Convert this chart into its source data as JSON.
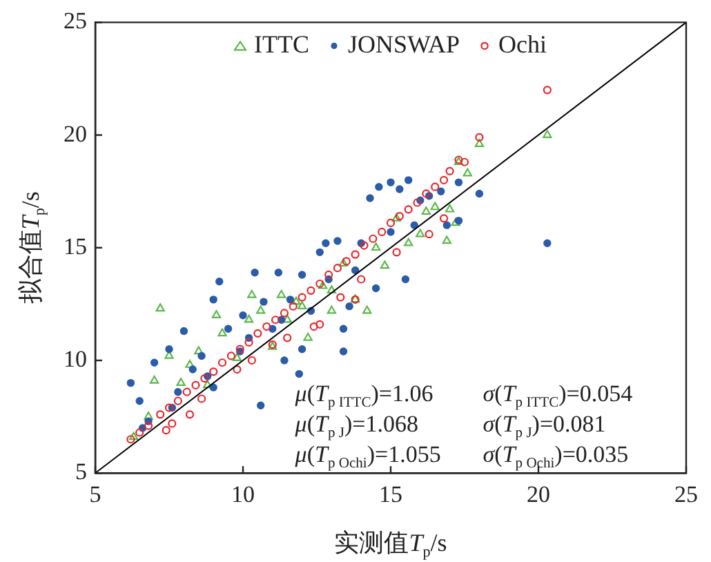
{
  "chart_data": {
    "type": "scatter",
    "xlabel": "实测值T$_{p}$/s",
    "ylabel": "拟合值T$_{p}$/s",
    "xlim": [
      5,
      25
    ],
    "ylim": [
      5,
      25
    ],
    "xticks": [
      5,
      10,
      15,
      20,
      25
    ],
    "yticks": [
      5,
      10,
      15,
      20,
      25
    ],
    "grid": false,
    "legend": "top",
    "series": [
      {
        "name": "ITTC",
        "color": "#5cb84a",
        "marker": "triangle",
        "x": [
          6.3,
          6.8,
          7.2,
          7.0,
          7.5,
          7.9,
          8.2,
          8.5,
          8.8,
          9.1,
          9.3,
          9.8,
          10.2,
          10.3,
          10.6,
          11.0,
          11.3,
          11.5,
          12.0,
          12.2,
          12.7,
          13.0,
          13.4,
          13.8,
          14.2,
          14.5,
          14.8,
          15.2,
          15.6,
          16.0,
          16.2,
          16.5,
          16.9,
          17.0,
          17.2,
          17.3,
          17.6,
          18.0,
          20.3,
          13.0,
          11.8
        ],
        "values": [
          6.6,
          7.5,
          12.3,
          9.1,
          10.2,
          9.0,
          9.8,
          10.4,
          8.9,
          12.0,
          11.2,
          10.1,
          11.8,
          12.9,
          12.2,
          10.6,
          12.9,
          11.8,
          12.4,
          11.0,
          13.3,
          12.2,
          14.3,
          12.7,
          12.2,
          15.0,
          14.2,
          16.3,
          15.2,
          15.6,
          16.6,
          16.8,
          15.3,
          16.7,
          16.1,
          18.8,
          18.3,
          19.6,
          20.0,
          13.1,
          12.6
        ]
      },
      {
        "name": "JONSWAP",
        "color": "#2a5caa",
        "marker": "circle",
        "x": [
          6.2,
          6.5,
          6.6,
          7.0,
          7.5,
          7.8,
          8.0,
          8.3,
          8.6,
          9.0,
          9.2,
          9.0,
          9.5,
          10.0,
          10.2,
          10.7,
          11.0,
          11.2,
          11.4,
          11.6,
          12.0,
          12.3,
          12.6,
          12.8,
          12.9,
          13.2,
          13.4,
          13.4,
          13.6,
          13.8,
          14.0,
          14.3,
          14.6,
          15.0,
          15.3,
          15.6,
          15.8,
          16.0,
          16.3,
          16.7,
          16.9,
          17.3,
          17.3,
          18.0,
          20.3,
          14.5,
          15.5,
          12.0,
          10.6,
          6.8,
          7.6,
          8.8,
          9.9,
          11.3,
          15.0,
          11.9,
          10.4
        ],
        "values": [
          9.0,
          8.2,
          7.0,
          9.9,
          10.5,
          8.6,
          11.3,
          9.6,
          10.2,
          8.8,
          13.5,
          12.7,
          11.4,
          12.0,
          11.0,
          12.6,
          11.4,
          13.9,
          10.0,
          12.7,
          13.8,
          12.2,
          14.8,
          15.2,
          13.6,
          15.3,
          10.4,
          11.4,
          12.4,
          14.0,
          15.2,
          17.2,
          17.7,
          17.9,
          17.6,
          18.0,
          16.0,
          17.1,
          17.3,
          17.5,
          16.0,
          17.9,
          16.2,
          17.4,
          15.2,
          13.2,
          13.6,
          10.5,
          8.0,
          7.3,
          7.9,
          9.3,
          10.4,
          11.8,
          15.7,
          9.4,
          13.9
        ]
      },
      {
        "name": "Ochi",
        "color": "#e8262b",
        "marker": "circle",
        "x": [
          6.2,
          6.5,
          6.8,
          7.2,
          7.5,
          7.8,
          8.1,
          8.4,
          8.7,
          9.0,
          9.3,
          9.6,
          9.9,
          10.2,
          10.5,
          10.8,
          11.1,
          11.4,
          11.7,
          12.0,
          12.3,
          12.6,
          12.9,
          13.2,
          13.5,
          13.8,
          14.1,
          14.4,
          14.7,
          15.0,
          15.3,
          15.6,
          15.9,
          16.2,
          16.5,
          16.8,
          17.0,
          17.3,
          17.5,
          18.0,
          20.3,
          7.4,
          8.6,
          9.8,
          11.5,
          12.6,
          13.3,
          14.0,
          15.2,
          16.3,
          16.8,
          8.2,
          10.3,
          13.8,
          12.4,
          11.0,
          7.6
        ],
        "values": [
          6.5,
          6.8,
          7.1,
          7.6,
          7.9,
          8.2,
          8.6,
          8.9,
          9.2,
          9.5,
          9.9,
          10.2,
          10.5,
          10.8,
          11.2,
          11.5,
          11.8,
          12.1,
          12.4,
          12.8,
          13.1,
          13.4,
          13.8,
          14.1,
          14.4,
          14.7,
          15.1,
          15.4,
          15.7,
          16.1,
          16.4,
          16.7,
          17.0,
          17.4,
          17.7,
          18.0,
          18.4,
          18.9,
          18.8,
          19.9,
          22.0,
          6.9,
          8.3,
          9.6,
          11.0,
          11.6,
          12.8,
          13.6,
          14.8,
          15.6,
          16.3,
          7.6,
          10.0,
          12.7,
          11.5,
          10.7,
          7.2
        ]
      },
      {
        "type": "line",
        "color": "#000000",
        "marker": "none",
        "x": [
          5,
          25
        ],
        "values": [
          5,
          25
        ]
      }
    ],
    "annotations": [
      "μ(T$_{p ITTC}$)=1.06",
      "σ(T$_{p ITTC}$)=0.054",
      "μ(T$_{p J}$)=1.068",
      "σ(T$_{p J}$)=0.081",
      "μ(T$_{p Ochi}$)=1.055",
      "σ(T$_{p Ochi}$)=0.035"
    ]
  }
}
